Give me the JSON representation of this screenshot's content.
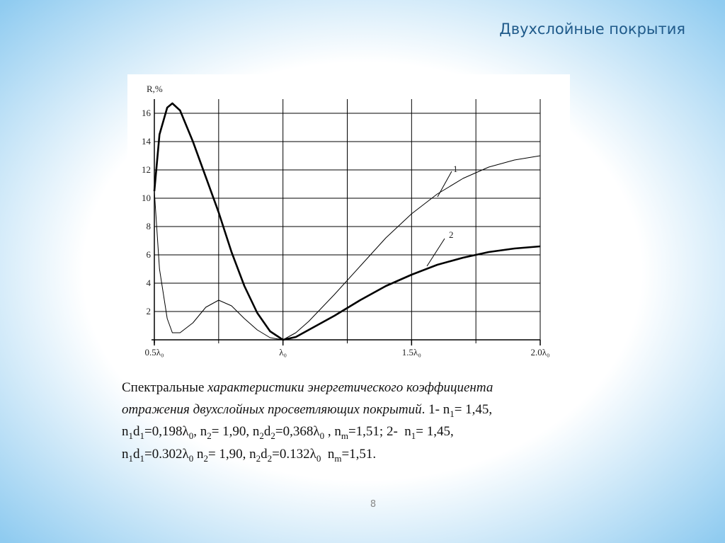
{
  "slide_title": "Двухслойные покрытия",
  "page_number": "8",
  "chart_data": {
    "type": "line",
    "ylabel": "R,%",
    "xlim": [
      0.5,
      2.0
    ],
    "ylim": [
      0,
      17
    ],
    "xticks": [
      {
        "value": 0.5,
        "label": "0.5λ₀"
      },
      {
        "value": 1.0,
        "label": "λ₀"
      },
      {
        "value": 1.5,
        "label": "1.5λ₀"
      },
      {
        "value": 2.0,
        "label": "2.0λ₀"
      }
    ],
    "xgrid": [
      0.75,
      1.0,
      1.25,
      1.5,
      1.75,
      2.0
    ],
    "yticks": [
      2,
      4,
      6,
      8,
      10,
      12,
      14,
      16
    ],
    "grid": true,
    "x": [
      0.5,
      0.52,
      0.55,
      0.57,
      0.6,
      0.65,
      0.7,
      0.75,
      0.8,
      0.85,
      0.9,
      0.95,
      1.0,
      1.05,
      1.1,
      1.2,
      1.3,
      1.4,
      1.5,
      1.6,
      1.7,
      1.8,
      1.9,
      2.0
    ],
    "series": [
      {
        "name": "1",
        "color": "#000000",
        "width": 1,
        "values": [
          10.5,
          5,
          1.5,
          0.5,
          0.5,
          1.2,
          2.3,
          2.8,
          2.4,
          1.5,
          0.7,
          0.15,
          0,
          0.5,
          1.3,
          3.2,
          5.2,
          7.2,
          8.9,
          10.3,
          11.4,
          12.2,
          12.7,
          13
        ]
      },
      {
        "name": "2",
        "color": "#000000",
        "width": 2.6,
        "values": [
          10.5,
          14.5,
          16.4,
          16.7,
          16.2,
          14,
          11.5,
          9,
          6.2,
          3.8,
          1.9,
          0.6,
          0,
          0.2,
          0.7,
          1.7,
          2.8,
          3.8,
          4.6,
          5.3,
          5.8,
          6.2,
          6.45,
          6.6
        ]
      }
    ]
  },
  "caption": [
    [
      {
        "text": "Спектральные ",
        "style": "normal"
      },
      {
        "text": "характеристики энергетического коэффициента",
        "style": "italic"
      }
    ],
    [
      {
        "text": "отражения двухслойных просветляющих покрытий",
        "style": "italic"
      },
      {
        "text": ". 1- n",
        "style": "normal"
      },
      {
        "text": "1",
        "style": "sub"
      },
      {
        "text": "= 1,45,",
        "style": "normal"
      }
    ],
    [
      {
        "text": "n",
        "style": "normal"
      },
      {
        "text": "1",
        "style": "sub"
      },
      {
        "text": "d",
        "style": "normal"
      },
      {
        "text": "1",
        "style": "sub"
      },
      {
        "text": "=0,198λ",
        "style": "normal"
      },
      {
        "text": "0",
        "style": "sub"
      },
      {
        "text": ", n",
        "style": "normal"
      },
      {
        "text": "2",
        "style": "sub"
      },
      {
        "text": "= 1,90, n",
        "style": "normal"
      },
      {
        "text": "2",
        "style": "sub"
      },
      {
        "text": "d",
        "style": "normal"
      },
      {
        "text": "2",
        "style": "sub"
      },
      {
        "text": "=0,368λ",
        "style": "normal"
      },
      {
        "text": "0",
        "style": "sub"
      },
      {
        "text": " , n",
        "style": "normal"
      },
      {
        "text": "m",
        "style": "sub"
      },
      {
        "text": "=1,51; 2-  n",
        "style": "normal"
      },
      {
        "text": "1",
        "style": "sub"
      },
      {
        "text": "= 1,45,",
        "style": "normal"
      }
    ],
    [
      {
        "text": "n",
        "style": "normal"
      },
      {
        "text": "1",
        "style": "sub"
      },
      {
        "text": "d",
        "style": "normal"
      },
      {
        "text": "1",
        "style": "sub"
      },
      {
        "text": "=0.302λ",
        "style": "normal"
      },
      {
        "text": "0",
        "style": "sub"
      },
      {
        "text": " n",
        "style": "normal"
      },
      {
        "text": "2",
        "style": "sub"
      },
      {
        "text": "= 1,90, n",
        "style": "normal"
      },
      {
        "text": "2",
        "style": "sub"
      },
      {
        "text": "d",
        "style": "normal"
      },
      {
        "text": "2",
        "style": "sub"
      },
      {
        "text": "=0.132λ",
        "style": "normal"
      },
      {
        "text": "0",
        "style": "sub"
      },
      {
        "text": "  n",
        "style": "normal"
      },
      {
        "text": "m",
        "style": "sub"
      },
      {
        "text": "=1,51.",
        "style": "normal"
      }
    ]
  ]
}
